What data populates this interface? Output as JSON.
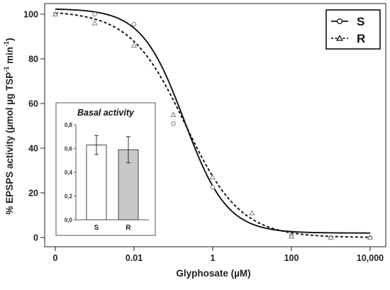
{
  "chart_data": [
    {
      "type": "line",
      "xlabel": "Glyphosate (µM)",
      "ylabel": "% EPSPS activity (µmol µg TSP⁻¹ min⁻¹)",
      "ylabel_parts": {
        "main": "% EPSPS activity (µmol µg TSP",
        "sup1": "-1",
        "mid": " min",
        "sup2": "-1",
        "end": ")"
      },
      "xscale": "log",
      "x_tick_labels": [
        "0",
        "0.01",
        "1",
        "100",
        "10,000"
      ],
      "x_ticks": [
        0.0001,
        0.01,
        1,
        100,
        10000
      ],
      "ylim": [
        -3,
        103
      ],
      "y_tick_labels": [
        "0",
        "20",
        "40",
        "60",
        "80",
        "100"
      ],
      "y_ticks": [
        0,
        20,
        40,
        60,
        80,
        100
      ],
      "grid": false,
      "legend_position": "top-right",
      "series": [
        {
          "name": "S",
          "marker": "circle",
          "line_style": "solid",
          "color": "#111111",
          "marker_color": "#8a8a8a",
          "points": [
            {
              "x": 0.0001,
              "y": 100
            },
            {
              "x": 0.001,
              "y": 100
            },
            {
              "x": 0.01,
              "y": 95.5
            },
            {
              "x": 0.1,
              "y": 51
            },
            {
              "x": 1,
              "y": 22.5
            },
            {
              "x": 100,
              "y": 1
            },
            {
              "x": 1000,
              "y": 0
            },
            {
              "x": 10000,
              "y": 0
            }
          ],
          "fit": {
            "top": 102.5,
            "bottom": 2,
            "ic50": 0.19,
            "hill": 0.8
          }
        },
        {
          "name": "R",
          "marker": "triangle",
          "line_style": "dashed",
          "color": "#111111",
          "marker_color": "#8a8a8a",
          "points": [
            {
              "x": 0.0001,
              "y": 100
            },
            {
              "x": 0.001,
              "y": 96
            },
            {
              "x": 0.01,
              "y": 86
            },
            {
              "x": 0.1,
              "y": 55
            },
            {
              "x": 1,
              "y": 27
            },
            {
              "x": 10,
              "y": 11
            },
            {
              "x": 100,
              "y": 0.5
            },
            {
              "x": 1000,
              "y": 0
            },
            {
              "x": 10000,
              "y": 0
            }
          ],
          "fit": {
            "top": 101.5,
            "bottom": 0,
            "ic50": 0.2,
            "hill": 0.62
          }
        }
      ]
    },
    {
      "type": "bar",
      "title": "Basal activity",
      "categories": [
        "S",
        "R"
      ],
      "values": [
        0.63,
        0.59
      ],
      "errors": [
        0.08,
        0.11
      ],
      "bar_colors": [
        "#ffffff",
        "#c8c8c8"
      ],
      "ylim": [
        0,
        0.8
      ],
      "y_tick_labels": [
        "0,0",
        "0,2",
        "0,4",
        "0,6",
        "0,8"
      ],
      "y_ticks": [
        0,
        0.2,
        0.4,
        0.6,
        0.8
      ]
    }
  ]
}
